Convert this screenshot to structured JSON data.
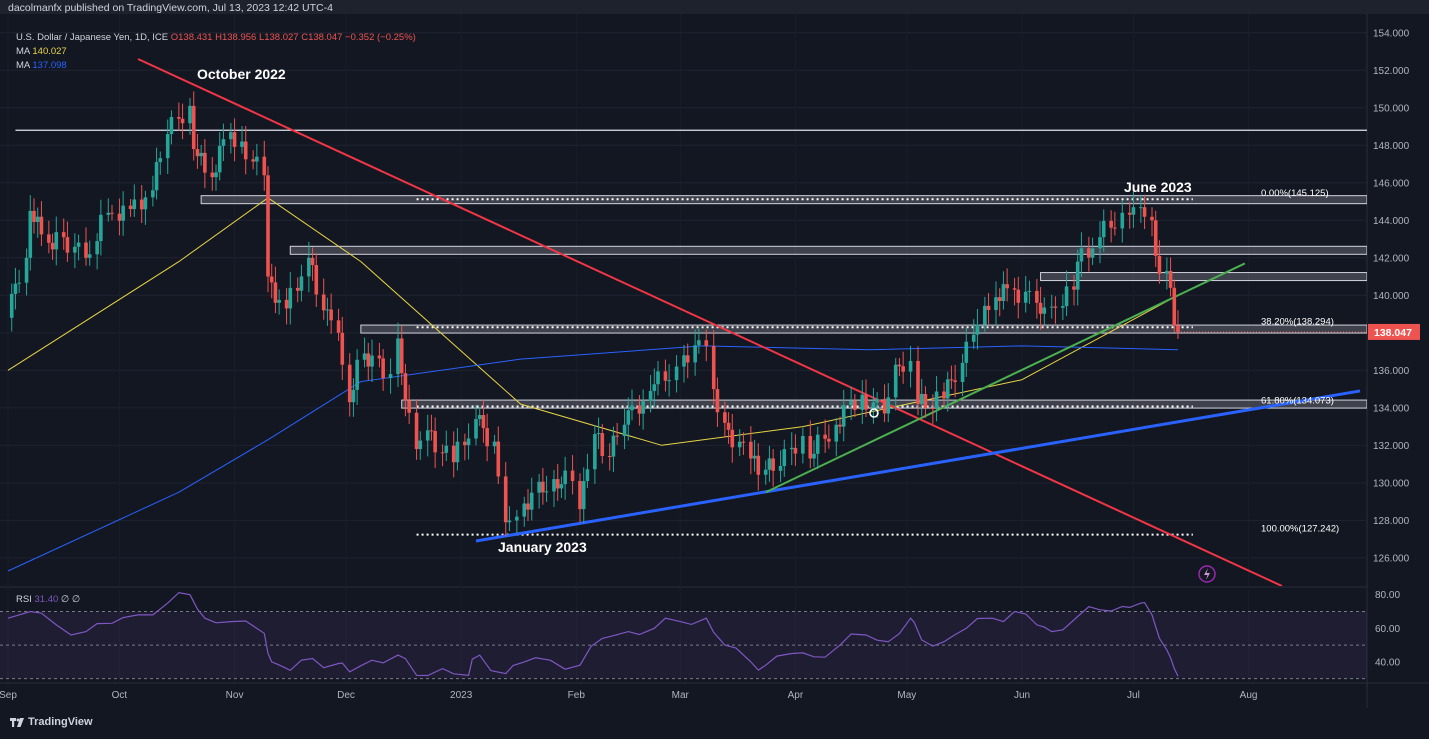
{
  "header": {
    "published": "dacolmanfx published on TradingView.com, Jul 13, 2023 12:42 UTC-4",
    "symbol": "U.S. Dollar / Japanese Yen, 1D, ICE",
    "ohlc": "O138.431  H138.956  L138.027  C138.047  −0.352  (−0.25%)",
    "ma1_label": "MA",
    "ma1_value": "140.027",
    "ma2_label": "MA",
    "ma2_value": "137.098"
  },
  "annotations": {
    "oct": "October 2022",
    "jan": "January 2023",
    "jun": "June 2023"
  },
  "footer": {
    "brand": "TradingView"
  },
  "colors": {
    "up": "#26a69a",
    "down": "#ef5350",
    "ma50": "#e8d446",
    "ma200": "#2962ff",
    "red_trend": "#f23645",
    "blue_trend": "#2962ff",
    "green_trend": "#4caf50",
    "rsi": "#7e57c2"
  },
  "chart_data": {
    "type": "candlestick",
    "title": "U.S. Dollar / Japanese Yen, 1D, ICE",
    "ylim": [
      124.5,
      155
    ],
    "y_ticks": [
      "154.000",
      "152.000",
      "150.000",
      "148.000",
      "146.000",
      "144.000",
      "142.000",
      "140.000",
      "138.000",
      "136.000",
      "134.000",
      "132.000",
      "130.000",
      "128.000",
      "126.000"
    ],
    "last_price": "138.047",
    "x_month_labels": [
      "Sep",
      "Oct",
      "Nov",
      "Dec",
      "2023",
      "Feb",
      "Mar",
      "Apr",
      "May",
      "Jun",
      "Jul",
      "Aug"
    ],
    "daily_close_path": [
      {
        "date": "2022-09-01",
        "close": 138.8
      },
      {
        "date": "2022-09-06",
        "close": 142.0
      },
      {
        "date": "2022-09-07",
        "close": 144.5
      },
      {
        "date": "2022-09-12",
        "close": 142.8
      },
      {
        "date": "2022-09-16",
        "close": 143.1
      },
      {
        "date": "2022-09-22",
        "close": 142.0
      },
      {
        "date": "2022-09-28",
        "close": 144.4
      },
      {
        "date": "2022-10-04",
        "close": 144.6
      },
      {
        "date": "2022-10-10",
        "close": 145.6
      },
      {
        "date": "2022-10-14",
        "close": 148.6
      },
      {
        "date": "2022-10-20",
        "close": 150.1
      },
      {
        "date": "2022-10-21",
        "close": 147.8
      },
      {
        "date": "2022-10-26",
        "close": 146.3
      },
      {
        "date": "2022-10-31",
        "close": 148.7
      },
      {
        "date": "2022-11-03",
        "close": 148.2
      },
      {
        "date": "2022-11-09",
        "close": 146.4
      },
      {
        "date": "2022-11-10",
        "close": 141.0
      },
      {
        "date": "2022-11-15",
        "close": 139.3
      },
      {
        "date": "2022-11-21",
        "close": 142.0
      },
      {
        "date": "2022-11-25",
        "close": 139.2
      },
      {
        "date": "2022-11-29",
        "close": 138.0
      },
      {
        "date": "2022-12-02",
        "close": 134.3
      },
      {
        "date": "2022-12-06",
        "close": 136.9
      },
      {
        "date": "2022-12-13",
        "close": 135.8
      },
      {
        "date": "2022-12-15",
        "close": 137.7
      },
      {
        "date": "2022-12-20",
        "close": 131.8
      },
      {
        "date": "2022-12-23",
        "close": 132.8
      },
      {
        "date": "2022-12-30",
        "close": 131.1
      },
      {
        "date": "2023-01-05",
        "close": 133.4
      },
      {
        "date": "2023-01-10",
        "close": 132.2
      },
      {
        "date": "2023-01-13",
        "close": 127.9
      },
      {
        "date": "2023-01-16",
        "close": 128.2
      },
      {
        "date": "2023-01-18",
        "close": 128.9
      },
      {
        "date": "2023-01-26",
        "close": 130.2
      },
      {
        "date": "2023-01-31",
        "close": 130.1
      },
      {
        "date": "2023-02-02",
        "close": 128.6
      },
      {
        "date": "2023-02-06",
        "close": 132.6
      },
      {
        "date": "2023-02-10",
        "close": 131.4
      },
      {
        "date": "2023-02-14",
        "close": 133.1
      },
      {
        "date": "2023-02-21",
        "close": 134.9
      },
      {
        "date": "2023-02-28",
        "close": 136.2
      },
      {
        "date": "2023-03-02",
        "close": 136.8
      },
      {
        "date": "2023-03-08",
        "close": 137.3
      },
      {
        "date": "2023-03-10",
        "close": 135.0
      },
      {
        "date": "2023-03-13",
        "close": 133.2
      },
      {
        "date": "2023-03-20",
        "close": 131.3
      },
      {
        "date": "2023-03-24",
        "close": 130.7
      },
      {
        "date": "2023-03-28",
        "close": 130.9
      },
      {
        "date": "2023-04-03",
        "close": 132.5
      },
      {
        "date": "2023-04-05",
        "close": 131.3
      },
      {
        "date": "2023-04-12",
        "close": 133.1
      },
      {
        "date": "2023-04-19",
        "close": 134.7
      },
      {
        "date": "2023-04-25",
        "close": 133.7
      },
      {
        "date": "2023-04-28",
        "close": 136.3
      },
      {
        "date": "2023-05-02",
        "close": 136.5
      },
      {
        "date": "2023-05-04",
        "close": 134.2
      },
      {
        "date": "2023-05-11",
        "close": 134.5
      },
      {
        "date": "2023-05-16",
        "close": 136.4
      },
      {
        "date": "2023-05-19",
        "close": 137.9
      },
      {
        "date": "2023-05-25",
        "close": 139.9
      },
      {
        "date": "2023-05-30",
        "close": 140.3
      },
      {
        "date": "2023-06-05",
        "close": 139.6
      },
      {
        "date": "2023-06-09",
        "close": 139.4
      },
      {
        "date": "2023-06-15",
        "close": 140.3
      },
      {
        "date": "2023-06-16",
        "close": 141.8
      },
      {
        "date": "2023-06-22",
        "close": 143.1
      },
      {
        "date": "2023-06-28",
        "close": 144.4
      },
      {
        "date": "2023-06-30",
        "close": 144.3
      },
      {
        "date": "2023-07-03",
        "close": 144.7
      },
      {
        "date": "2023-07-06",
        "close": 144.0
      },
      {
        "date": "2023-07-07",
        "close": 142.1
      },
      {
        "date": "2023-07-10",
        "close": 141.3
      },
      {
        "date": "2023-07-11",
        "close": 140.4
      },
      {
        "date": "2023-07-12",
        "close": 138.4
      },
      {
        "date": "2023-07-13",
        "close": 138.047
      }
    ],
    "moving_averages": [
      {
        "name": "MA",
        "value": 140.027,
        "approx_path": [
          {
            "date": "2022-09-01",
            "v": 136.0
          },
          {
            "date": "2022-10-17",
            "v": 141.8
          },
          {
            "date": "2022-11-10",
            "v": 145.2
          },
          {
            "date": "2022-12-05",
            "v": 141.8
          },
          {
            "date": "2023-01-17",
            "v": 134.2
          },
          {
            "date": "2023-02-24",
            "v": 132.0
          },
          {
            "date": "2023-04-03",
            "v": 133.0
          },
          {
            "date": "2023-05-01",
            "v": 134.2
          },
          {
            "date": "2023-06-01",
            "v": 135.5
          },
          {
            "date": "2023-07-13",
            "v": 140.0
          }
        ]
      },
      {
        "name": "MA",
        "value": 137.098,
        "approx_path": [
          {
            "date": "2022-09-01",
            "v": 125.3
          },
          {
            "date": "2022-10-17",
            "v": 129.5
          },
          {
            "date": "2022-11-10",
            "v": 132.3
          },
          {
            "date": "2022-12-05",
            "v": 135.4
          },
          {
            "date": "2023-01-17",
            "v": 136.6
          },
          {
            "date": "2023-03-07",
            "v": 137.3
          },
          {
            "date": "2023-04-21",
            "v": 137.1
          },
          {
            "date": "2023-06-01",
            "v": 137.3
          },
          {
            "date": "2023-07-13",
            "v": 137.1
          }
        ]
      }
    ],
    "horizontal_levels": [
      148.8,
      145.1,
      142.4,
      141.0,
      138.2,
      134.2
    ],
    "fibonacci": [
      {
        "label": "0.00%(145.125)",
        "value": 145.125
      },
      {
        "label": "38.20%(138.294)",
        "value": 138.294
      },
      {
        "label": "61.80%(134.073)",
        "value": 134.073
      },
      {
        "label": "100.00%(127.242)",
        "value": 127.242
      }
    ],
    "trendlines": [
      {
        "name": "red",
        "from": {
          "date": "2022-10-06",
          "v": 152.6
        },
        "to": {
          "date": "2023-08-10",
          "v": 124.5
        }
      },
      {
        "name": "blue",
        "from": {
          "date": "2023-01-05",
          "v": 126.9
        },
        "to": {
          "date": "2023-08-31",
          "v": 134.9
        }
      },
      {
        "name": "green",
        "from": {
          "date": "2023-03-24",
          "v": 129.5
        },
        "to": {
          "date": "2023-07-31",
          "v": 141.7
        }
      }
    ],
    "rsi": {
      "label": "RSI",
      "value": "31.40",
      "extra": "∅  ∅",
      "ylim": [
        28,
        84
      ],
      "y_ticks": [
        "80.00",
        "60.00",
        "40.00"
      ],
      "bands": [
        70,
        50,
        30
      ],
      "path": [
        {
          "date": "2022-09-01",
          "v": 66
        },
        {
          "date": "2022-09-07",
          "v": 70
        },
        {
          "date": "2022-09-14",
          "v": 62
        },
        {
          "date": "2022-09-22",
          "v": 58
        },
        {
          "date": "2022-09-29",
          "v": 63
        },
        {
          "date": "2022-10-06",
          "v": 68
        },
        {
          "date": "2022-10-14",
          "v": 75
        },
        {
          "date": "2022-10-20",
          "v": 80
        },
        {
          "date": "2022-10-24",
          "v": 66
        },
        {
          "date": "2022-10-31",
          "v": 64
        },
        {
          "date": "2022-11-09",
          "v": 57
        },
        {
          "date": "2022-11-11",
          "v": 40
        },
        {
          "date": "2022-11-16",
          "v": 35
        },
        {
          "date": "2022-11-22",
          "v": 42
        },
        {
          "date": "2022-11-29",
          "v": 39
        },
        {
          "date": "2022-12-02",
          "v": 34
        },
        {
          "date": "2022-12-08",
          "v": 41
        },
        {
          "date": "2022-12-15",
          "v": 44
        },
        {
          "date": "2022-12-20",
          "v": 32
        },
        {
          "date": "2022-12-27",
          "v": 36
        },
        {
          "date": "2023-01-03",
          "v": 32
        },
        {
          "date": "2023-01-06",
          "v": 44
        },
        {
          "date": "2023-01-13",
          "v": 33
        },
        {
          "date": "2023-01-18",
          "v": 40
        },
        {
          "date": "2023-01-25",
          "v": 41
        },
        {
          "date": "2023-02-02",
          "v": 38
        },
        {
          "date": "2023-02-08",
          "v": 54
        },
        {
          "date": "2023-02-15",
          "v": 58
        },
        {
          "date": "2023-02-22",
          "v": 60
        },
        {
          "date": "2023-03-01",
          "v": 64
        },
        {
          "date": "2023-03-08",
          "v": 66
        },
        {
          "date": "2023-03-13",
          "v": 50
        },
        {
          "date": "2023-03-20",
          "v": 40
        },
        {
          "date": "2023-03-24",
          "v": 38
        },
        {
          "date": "2023-03-31",
          "v": 45
        },
        {
          "date": "2023-04-06",
          "v": 43
        },
        {
          "date": "2023-04-13",
          "v": 50
        },
        {
          "date": "2023-04-20",
          "v": 56
        },
        {
          "date": "2023-04-26",
          "v": 52
        },
        {
          "date": "2023-05-02",
          "v": 66
        },
        {
          "date": "2023-05-05",
          "v": 53
        },
        {
          "date": "2023-05-11",
          "v": 52
        },
        {
          "date": "2023-05-17",
          "v": 60
        },
        {
          "date": "2023-05-24",
          "v": 66
        },
        {
          "date": "2023-05-30",
          "v": 70
        },
        {
          "date": "2023-06-05",
          "v": 62
        },
        {
          "date": "2023-06-09",
          "v": 58
        },
        {
          "date": "2023-06-16",
          "v": 67
        },
        {
          "date": "2023-06-22",
          "v": 71
        },
        {
          "date": "2023-06-28",
          "v": 73
        },
        {
          "date": "2023-07-03",
          "v": 75
        },
        {
          "date": "2023-07-06",
          "v": 68
        },
        {
          "date": "2023-07-10",
          "v": 47
        },
        {
          "date": "2023-07-12",
          "v": 36
        },
        {
          "date": "2023-07-13",
          "v": 31.4
        }
      ]
    }
  }
}
